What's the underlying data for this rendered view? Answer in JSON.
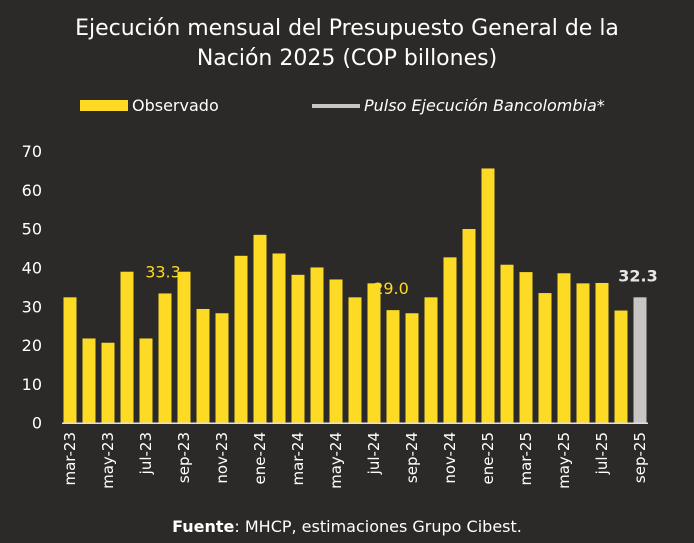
{
  "chart_data": {
    "type": "bar",
    "title_line1": "Ejecución mensual del Presupuesto General de la",
    "title_line2": "Nación 2025  (COP billones)",
    "source_label": "Fuente",
    "source_text": ": MHCP, estimaciones Grupo Cibest.",
    "legend": [
      {
        "name": "Observado",
        "color": "#fdda24"
      },
      {
        "name": "Pulso Ejecución Bancolombia*",
        "color": "#c9c5c3"
      }
    ],
    "legend_placement": "top",
    "ylim": [
      0,
      70
    ],
    "yticks": [
      0,
      10,
      20,
      30,
      40,
      50,
      60,
      70
    ],
    "grid": false,
    "categories": [
      "mar-23",
      "abr-23",
      "may-23",
      "jun-23",
      "jul-23",
      "ago-23",
      "sep-23",
      "oct-23",
      "nov-23",
      "dic-23",
      "ene-24",
      "feb-24",
      "mar-24",
      "abr-24",
      "may-24",
      "jun-24",
      "jul-24",
      "ago-24",
      "sep-24",
      "oct-24",
      "nov-24",
      "dic-24",
      "ene-25",
      "feb-25",
      "mar-25",
      "abr-25",
      "may-25",
      "jun-25",
      "jul-25",
      "ago-25",
      "sep-25"
    ],
    "xtick_labels_shown": [
      "mar-23",
      "may-23",
      "jul-23",
      "sep-23",
      "nov-23",
      "ene-24",
      "mar-24",
      "may-24",
      "jul-24",
      "sep-24",
      "nov-24",
      "ene-25",
      "mar-25",
      "may-25",
      "jul-25",
      "sep-25"
    ],
    "series": [
      {
        "name": "Observado",
        "values": [
          32.3,
          21.7,
          20.6,
          38.9,
          21.7,
          33.3,
          38.9,
          29.3,
          28.2,
          43.0,
          48.4,
          43.6,
          38.1,
          40.0,
          36.9,
          32.3,
          35.9,
          29.0,
          28.2,
          32.3,
          42.6,
          49.9,
          65.5,
          40.7,
          38.8,
          33.4,
          38.5,
          35.9,
          36.0,
          28.9,
          null
        ]
      },
      {
        "name": "Pulso Ejecución Bancolombia*",
        "values": [
          null,
          null,
          null,
          null,
          null,
          null,
          null,
          null,
          null,
          null,
          null,
          null,
          null,
          null,
          null,
          null,
          null,
          null,
          null,
          null,
          null,
          null,
          null,
          null,
          null,
          null,
          null,
          null,
          null,
          null,
          32.3
        ]
      }
    ],
    "data_labels": [
      {
        "category": "ago-23",
        "text": "33.3",
        "color": "#fdda24"
      },
      {
        "category": "ago-24",
        "text": "29.0",
        "color": "#fdda24"
      },
      {
        "category": "sep-25",
        "text": "32.3",
        "color": "#e8e6e4"
      }
    ]
  }
}
